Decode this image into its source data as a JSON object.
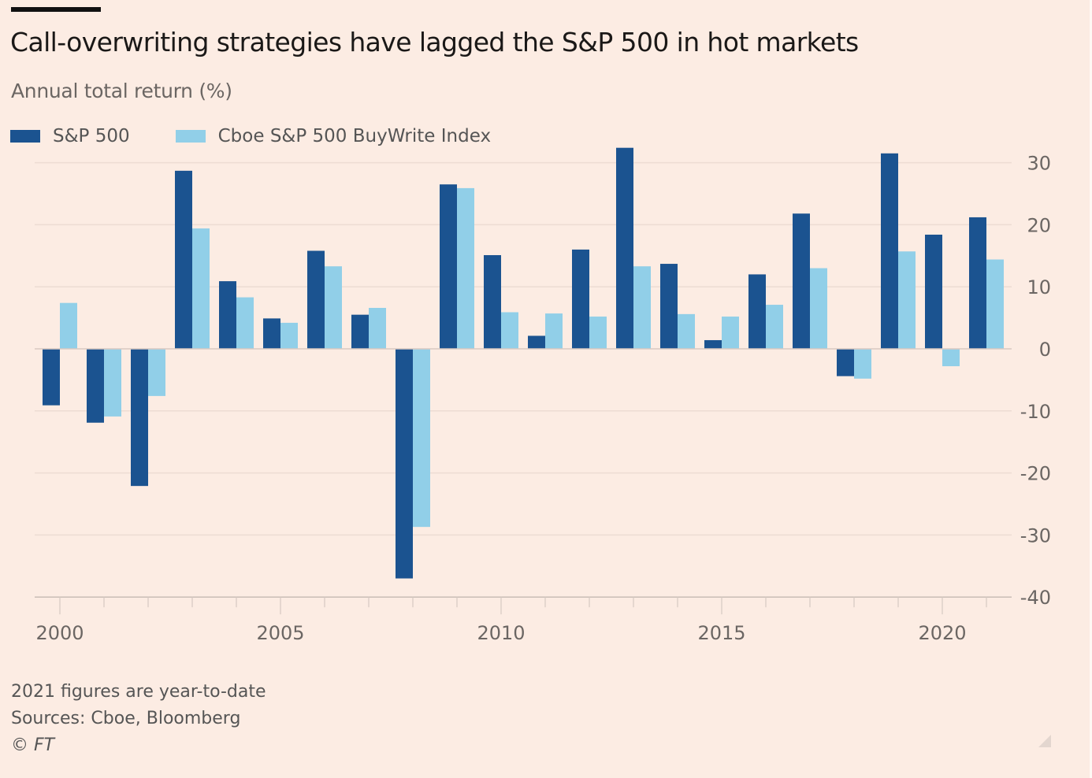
{
  "chart_data": {
    "type": "bar",
    "title": "Call-overwriting strategies have lagged the S&P 500 in hot markets",
    "subtitle": "Annual total return (%)",
    "xlabel": "",
    "ylabel": "Annual total return (%)",
    "categories": [
      2000,
      2001,
      2002,
      2003,
      2004,
      2005,
      2006,
      2007,
      2008,
      2009,
      2010,
      2011,
      2012,
      2013,
      2014,
      2015,
      2016,
      2017,
      2018,
      2019,
      2020,
      2021
    ],
    "series": [
      {
        "name": "S&P 500",
        "color": "#1b5390",
        "values": [
          -9.1,
          -11.9,
          -22.1,
          28.7,
          10.9,
          4.9,
          15.8,
          5.5,
          -37.0,
          26.5,
          15.1,
          2.1,
          16.0,
          32.4,
          13.7,
          1.4,
          12.0,
          21.8,
          -4.4,
          31.5,
          18.4,
          21.2
        ]
      },
      {
        "name": "Cboe S&P 500 BuyWrite Index",
        "color": "#91cfe8",
        "values": [
          7.4,
          -10.9,
          -7.6,
          19.4,
          8.3,
          4.2,
          13.3,
          6.6,
          -28.7,
          25.9,
          5.9,
          5.7,
          5.2,
          13.3,
          5.6,
          5.2,
          7.1,
          13.0,
          -4.8,
          15.7,
          -2.8,
          14.4
        ]
      }
    ],
    "ylim": [
      -40,
      30
    ],
    "yticks": [
      30,
      20,
      10,
      0,
      -10,
      -20,
      -30,
      -40
    ],
    "xticks_labeled": [
      2000,
      2005,
      2010,
      2015,
      2020
    ],
    "grid": true,
    "y_axis_side": "right",
    "legend_position": "top-left",
    "notes": [
      "2021 figures are year-to-date",
      "Sources: Cboe, Bloomberg",
      "© FT"
    ]
  },
  "header": {
    "title": "Call-overwriting strategies have lagged the S&P 500 in hot markets",
    "subtitle": "Annual total return (%)"
  },
  "legend": [
    {
      "label": "S&P 500",
      "color": "#1b5390"
    },
    {
      "label": "Cboe S&P 500 BuyWrite Index",
      "color": "#91cfe8"
    }
  ],
  "footer": {
    "note": "2021 figures are year-to-date",
    "sources": "Sources: Cboe, Bloomberg",
    "copyright": "© FT"
  }
}
